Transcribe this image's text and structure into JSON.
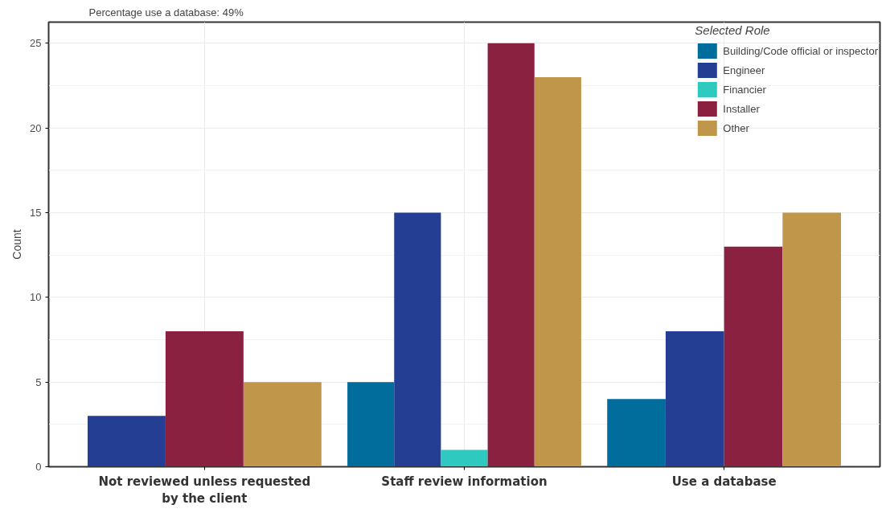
{
  "chart_data": {
    "type": "bar",
    "subtitle": "Percentage use a database: 49%",
    "ylabel": "Count",
    "legend_title": "Selected Role",
    "categories": [
      "Not reviewed unless requested\nby the client",
      "Staff review information",
      "Use a database"
    ],
    "series": [
      {
        "name": "Building/Code official or inspector",
        "color": "#006d9c",
        "values": [
          null,
          5,
          4
        ]
      },
      {
        "name": "Engineer",
        "color": "#233e93",
        "values": [
          3,
          15,
          8
        ]
      },
      {
        "name": "Financier",
        "color": "#2ecac0",
        "values": [
          null,
          1,
          null
        ]
      },
      {
        "name": "Installer",
        "color": "#8b2140",
        "values": [
          8,
          25,
          13
        ]
      },
      {
        "name": "Other",
        "color": "#c0974a",
        "values": [
          5,
          23,
          15
        ]
      }
    ],
    "ylim": [
      0,
      26.25
    ],
    "yticks": [
      0,
      5,
      10,
      15,
      20,
      25
    ],
    "grid": true,
    "legend": "top right"
  }
}
